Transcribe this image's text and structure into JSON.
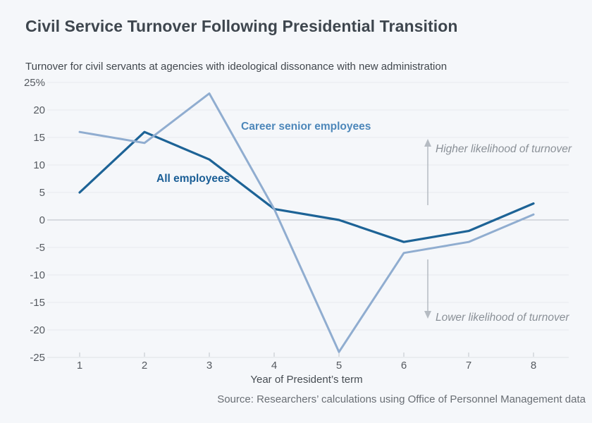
{
  "header": {
    "title": "Civil Service Turnover Following Presidential Transition",
    "subtitle": "Turnover for civil servants at agencies with ideological dissonance with new administration"
  },
  "chart_data": {
    "type": "line",
    "x": [
      1,
      2,
      3,
      4,
      5,
      6,
      7,
      8
    ],
    "series": [
      {
        "name": "All employees",
        "values": [
          5,
          16,
          11,
          2,
          0,
          -4,
          -2,
          3
        ],
        "color": "#1d6396",
        "label_color": "#1a5e96"
      },
      {
        "name": "Career senior employees",
        "values": [
          16,
          14,
          23,
          2,
          -24,
          -6,
          -4,
          1
        ],
        "color": "#90add0",
        "label_color": "#4d87ba"
      }
    ],
    "xlabel": "Year of President’s term",
    "ylim": [
      -25,
      25
    ],
    "ytick_step": 5,
    "ytick_top_label": "25%",
    "grid": true,
    "legend_position": "inline-labels",
    "annotations": [
      {
        "text": "Higher likelihood of turnover",
        "direction": "up"
      },
      {
        "text": "Lower likelihood of turnover",
        "direction": "down"
      }
    ]
  },
  "footer": {
    "source": "Source: Researchers’ calculations using Office of Personnel Management data"
  }
}
